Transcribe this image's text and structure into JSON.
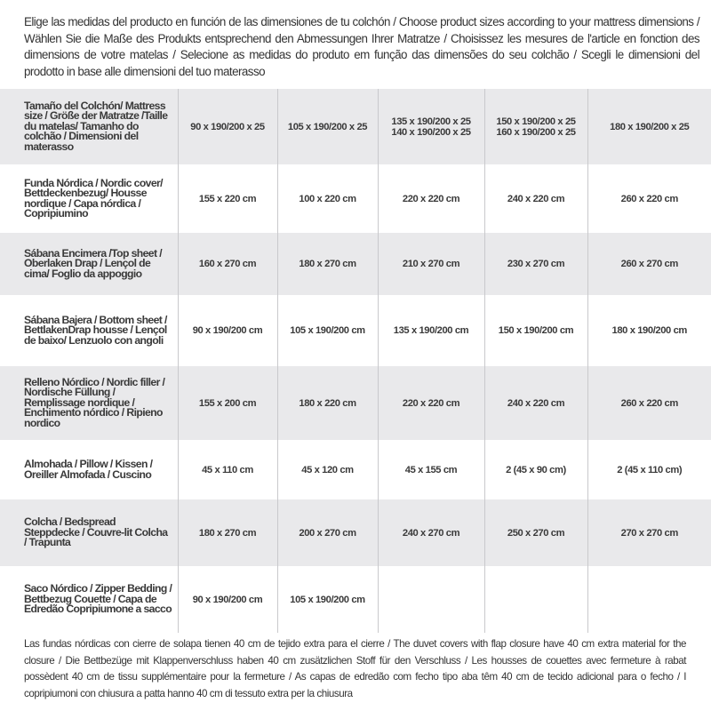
{
  "intro": "Elige las medidas del producto en función de las dimensiones de tu colchón / Choose product sizes according to your mattress dimensions / Wählen Sie die Maße des Produkts entsprechend den Abmessungen Ihrer Matratze / Choisissez les mesures de l'article en fonction des dimensions de votre matelas / Selecione as medidas do produto em função das dimensões do seu colchão / Scegli le dimensioni del prodotto in base alle dimensioni del tuo materasso",
  "table": {
    "header": {
      "label": "Tamaño del Colchón/ Mattress size / Größe der Matratze /Taille du matelas/ Tamanho do colchão / Dimensioni del materasso",
      "cols": [
        [
          "90 x 190/200 x 25"
        ],
        [
          "105 x 190/200 x 25"
        ],
        [
          "135 x 190/200 x 25",
          "140 x 190/200 x 25"
        ],
        [
          "150 x 190/200 x 25",
          "160 x 190/200 x 25"
        ],
        [
          "180 x 190/200 x 25"
        ]
      ]
    },
    "rows": [
      {
        "label": "Funda Nórdica /  Nordic cover/ Bettdeckenbezug/ Housse nordique  / Capa nórdica / Copripiumino",
        "values": [
          "155 x 220 cm",
          "100 x 220 cm",
          "220 x 220 cm",
          "240 x 220 cm",
          "260 x 220 cm"
        ]
      },
      {
        "label": "Sábana Encimera /Top sheet / Oberlaken Drap / Lençol de cima/ Foglio da appoggio",
        "values": [
          "160 x 270 cm",
          "180 x 270 cm",
          "210 x 270 cm",
          "230 x 270 cm",
          "260 x 270 cm"
        ]
      },
      {
        "label": "Sábana Bajera / Bottom sheet / BettlakenDrap housse / Lençol de baixo/ Lenzuolo con angoli",
        "values": [
          "90 x 190/200 cm",
          "105 x 190/200 cm",
          "135 x 190/200 cm",
          "150 x 190/200 cm",
          "180 x 190/200 cm"
        ]
      },
      {
        "label": "Relleno Nórdico / Nordic filler / Nordische Füllung / Remplissage nordique / Enchimento nórdico / Ripieno nordico",
        "values": [
          "155 x 200 cm",
          "180 x 220 cm",
          "220 x 220 cm",
          "240 x 220 cm",
          "260 x 220 cm"
        ]
      },
      {
        "label": "Almohada  / Pillow / Kissen / Oreiller Almofada / Cuscino",
        "values": [
          "45 x 110 cm",
          "45 x 120 cm",
          "45 x 155 cm",
          "2 (45 x 90 cm)",
          "2 (45 x 110 cm)"
        ]
      },
      {
        "label": "Colcha / Bedspread Steppdecke / Couvre-lit Colcha / Trapunta",
        "values": [
          "180 x 270 cm",
          "200 x 270 cm",
          "240 x 270 cm",
          "250 x 270 cm",
          "270 x 270 cm"
        ]
      },
      {
        "label": "Saco Nórdico / Zipper Bedding / Bettbezug Couette  / Capa de Edredão Copripiumone a sacco",
        "values": [
          "90 x 190/200 cm",
          "105 x 190/200 cm",
          "",
          "",
          ""
        ]
      }
    ]
  },
  "footer": "Las fundas nórdicas con cierre de solapa tienen 40 cm de tejido extra para el cierre  / The duvet covers with flap closure have 40 cm extra material for the closure / Die Bettbezüge mit Klappenverschluss haben 40 cm zusätzlichen Stoff für den Verschluss / Les housses de couettes avec fermeture à rabat possèdent 40 cm de tissu supplémentaire pour la fermeture / As capas de edredão com fecho tipo aba têm 40 cm de tecido adicional para o fecho / I copripiumoni con chiusura a patta hanno 40 cm di tessuto extra per la chiusura",
  "colors": {
    "row_shade": "#e9e9eb",
    "text": "#333333",
    "divider": "#c9c9cc"
  }
}
